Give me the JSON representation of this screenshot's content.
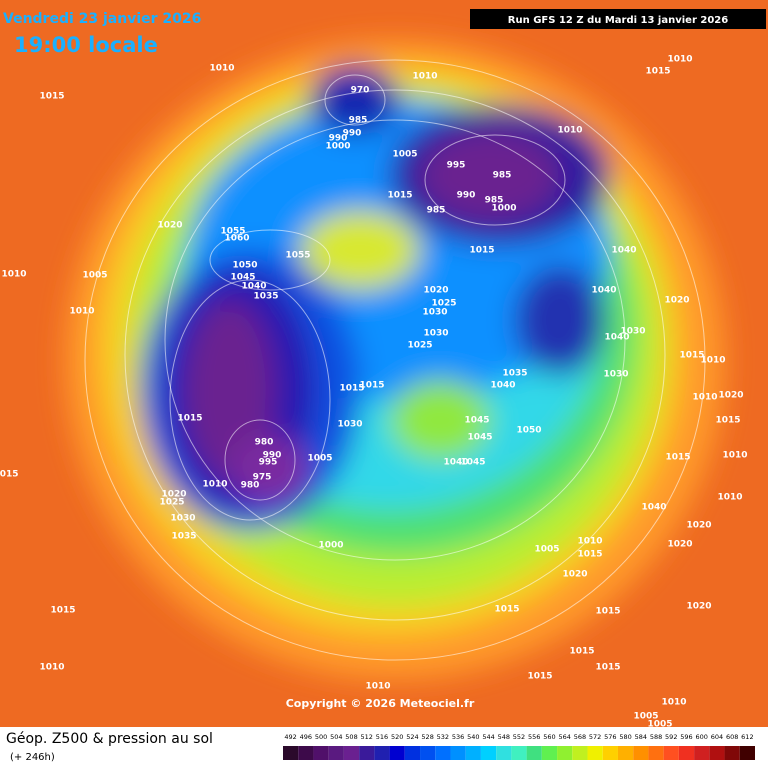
{
  "header": {
    "date": "Vendredi 23 janvier 2026",
    "time": "19:00 locale",
    "run": "Run GFS 12 Z du Mardi 13 janvier 2026"
  },
  "copyright": "Copyright © 2026 Meteociel.fr",
  "footer": {
    "title": "Géop. Z500 & pression au sol",
    "subtitle": "(+ 246h)"
  },
  "pressure_labels": [
    "1010",
    "1015",
    "970",
    "985",
    "990",
    "990",
    "1000",
    "1010",
    "1015",
    "1010",
    "1010",
    "1005",
    "995",
    "985",
    "990",
    "985",
    "1000",
    "985",
    "1015",
    "1015",
    "1040",
    "1020",
    "1055",
    "1060",
    "1055",
    "1050",
    "1045",
    "1040",
    "1035",
    "1010",
    "1005",
    "1010",
    "1020",
    "1025",
    "1030",
    "1030",
    "1025",
    "1040",
    "1020",
    "1030",
    "1040",
    "1030",
    "1015",
    "1010",
    "1035",
    "1040",
    "1015",
    "1015",
    "1010",
    "1020",
    "1015",
    "1015",
    "1030",
    "1045",
    "1050",
    "1045",
    "980",
    "990",
    "995",
    "1005",
    "1040",
    "1045",
    "1015",
    "1010",
    "975",
    "980",
    "1010",
    "1020",
    "1025",
    "1015",
    "1010",
    "1030",
    "1035",
    "1040",
    "1020",
    "1000",
    "1005",
    "1010",
    "1015",
    "1020",
    "1020",
    "1015",
    "1015",
    "1015",
    "1020",
    "1010",
    "1015",
    "1015",
    "1015",
    "1010",
    "1010",
    "1005",
    "1005"
  ],
  "colorbar": {
    "labels": [
      "492",
      "496",
      "500",
      "504",
      "508",
      "512",
      "516",
      "520",
      "524",
      "528",
      "532",
      "536",
      "540",
      "544",
      "548",
      "552",
      "556",
      "560",
      "564",
      "568",
      "572",
      "576",
      "580",
      "584",
      "588",
      "592",
      "596",
      "600",
      "604",
      "608",
      "612"
    ],
    "colors": [
      "#2b0a2b",
      "#3d0a4a",
      "#50106a",
      "#5a1a80",
      "#6a2090",
      "#3a1a9a",
      "#2020b0",
      "#0000d0",
      "#0030e0",
      "#0050f0",
      "#0070ff",
      "#0090ff",
      "#00b0ff",
      "#00d0ff",
      "#30e0e0",
      "#40f0c0",
      "#40e080",
      "#60f050",
      "#90f030",
      "#c0f020",
      "#f0f000",
      "#ffd000",
      "#ffb000",
      "#ff9000",
      "#ff7010",
      "#ff5020",
      "#f03020",
      "#d02020",
      "#b01010",
      "#800808",
      "#400000"
    ]
  }
}
